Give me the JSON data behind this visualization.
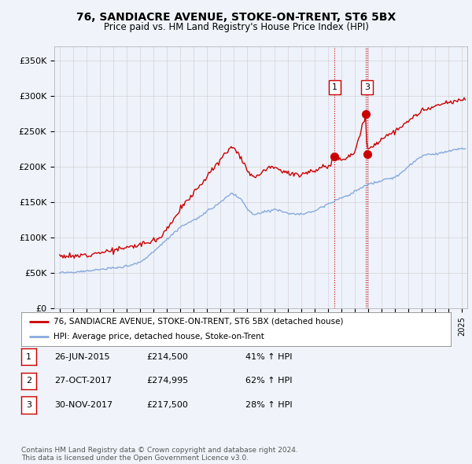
{
  "title": "76, SANDIACRE AVENUE, STOKE-ON-TRENT, ST6 5BX",
  "subtitle": "Price paid vs. HM Land Registry's House Price Index (HPI)",
  "ylim": [
    0,
    370000
  ],
  "yticks": [
    0,
    50000,
    100000,
    150000,
    200000,
    250000,
    300000,
    350000
  ],
  "ytick_labels": [
    "£0",
    "£50K",
    "£100K",
    "£150K",
    "£200K",
    "£250K",
    "£300K",
    "£350K"
  ],
  "outer_bg": "#f0f4fa",
  "plot_bg": "#eef2fa",
  "grid_color": "#cccccc",
  "red_line_color": "#cc0000",
  "blue_line_color": "#88aadd",
  "annotation_line_color": "#cc0000",
  "transactions": [
    {
      "num": 1,
      "date_yr": 2015.5,
      "price": 214500,
      "show_box": true
    },
    {
      "num": 2,
      "date_yr": 2017.83,
      "price": 274995,
      "show_box": false
    },
    {
      "num": 3,
      "date_yr": 2017.92,
      "price": 217500,
      "show_box": true
    }
  ],
  "legend_entries": [
    "76, SANDIACRE AVENUE, STOKE-ON-TRENT, ST6 5BX (detached house)",
    "HPI: Average price, detached house, Stoke-on-Trent"
  ],
  "table_rows": [
    [
      "1",
      "26-JUN-2015",
      "£214,500",
      "41% ↑ HPI"
    ],
    [
      "2",
      "27-OCT-2017",
      "£274,995",
      "62% ↑ HPI"
    ],
    [
      "3",
      "30-NOV-2017",
      "£217,500",
      "28% ↑ HPI"
    ]
  ],
  "footer": "Contains HM Land Registry data © Crown copyright and database right 2024.\nThis data is licensed under the Open Government Licence v3.0."
}
